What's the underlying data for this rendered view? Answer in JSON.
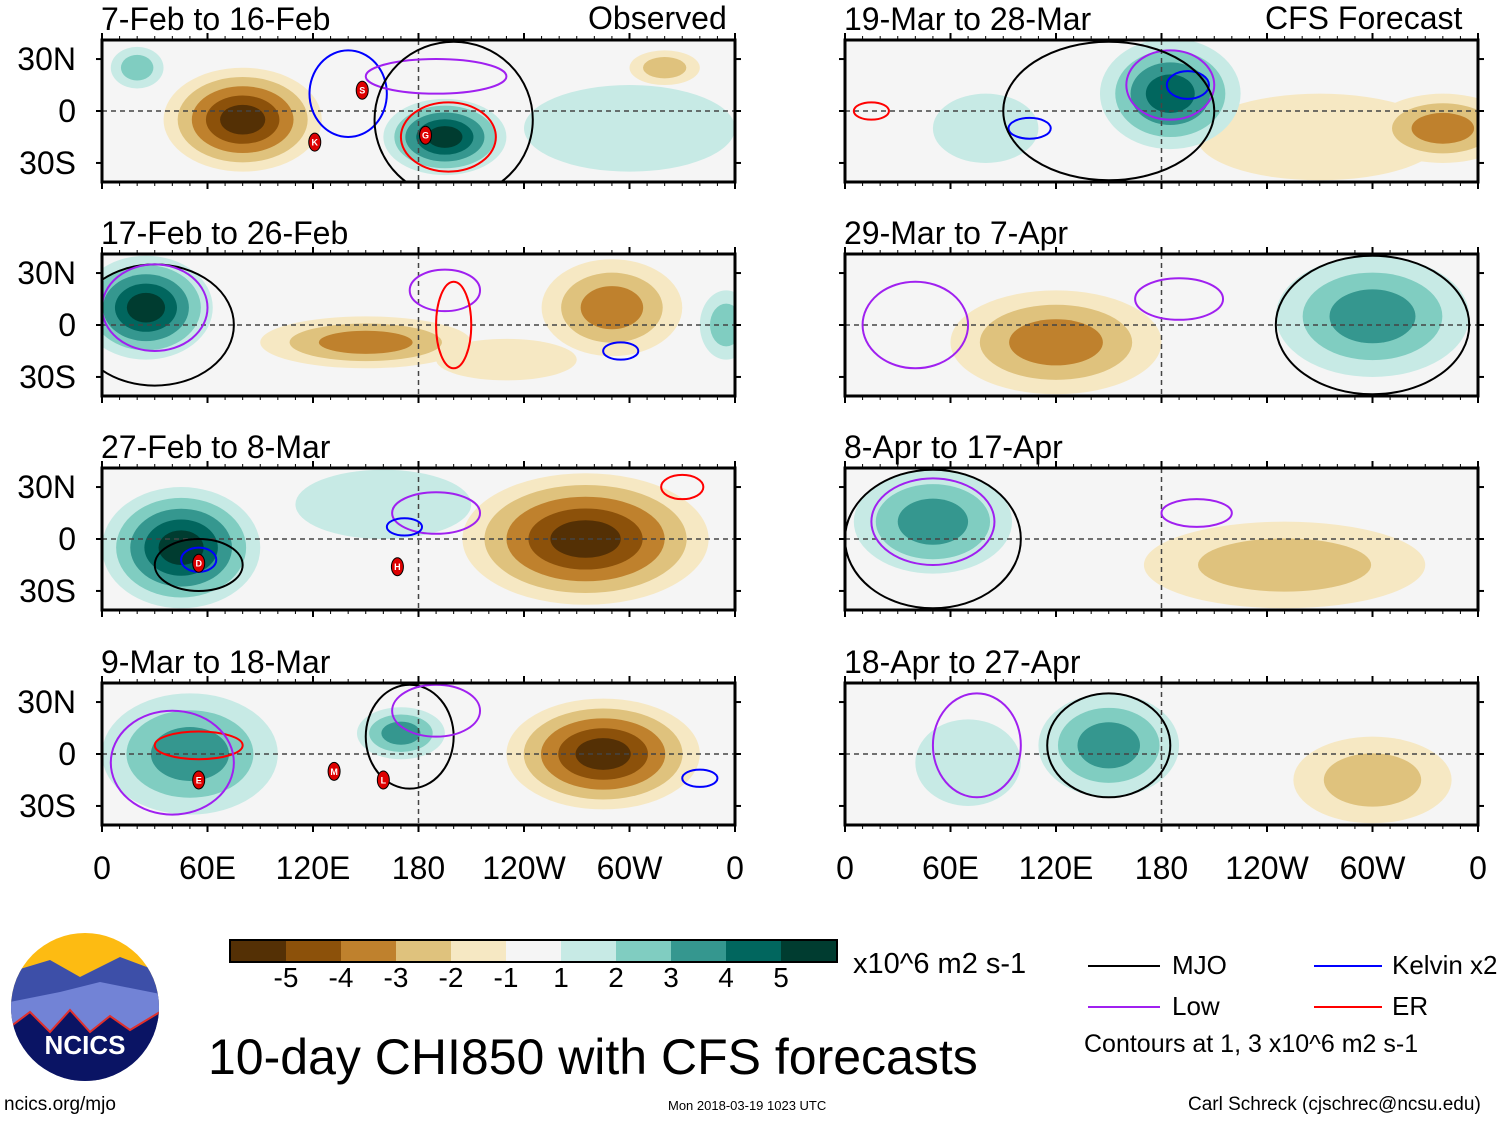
{
  "header": {
    "left_label": "Observed",
    "right_label": "CFS Forecast"
  },
  "lat_labels": [
    "30N",
    "0",
    "30S"
  ],
  "lon_labels": [
    "0",
    "60E",
    "120E",
    "180",
    "120W",
    "60W",
    "0"
  ],
  "colorbar": {
    "colors": [
      "#543005",
      "#8c510a",
      "#bf812d",
      "#dfc27d",
      "#f6e8c3",
      "#f5f5f5",
      "#c7eae5",
      "#80cdc1",
      "#35978f",
      "#01665e",
      "#003c30"
    ],
    "tick_labels": [
      "-5",
      "-4",
      "-3",
      "-2",
      "-1",
      "1",
      "2",
      "3",
      "4",
      "5"
    ],
    "units": "x10^6 m2 s-1"
  },
  "legend": {
    "items": [
      {
        "label": "MJO",
        "color": "#000000"
      },
      {
        "label": "Kelvin x2",
        "color": "#0000ff"
      },
      {
        "label": "Low",
        "color": "#a020f0"
      },
      {
        "label": "ER",
        "color": "#ff0000"
      }
    ],
    "note": "Contours at 1, 3 x10^6 m2 s-1"
  },
  "title": "10-day CHI850 with CFS forecasts",
  "logo_text": "NCICS",
  "footer": {
    "url": "ncics.org/mjo",
    "timestamp": "Mon 2018-03-19 1023 UTC",
    "author": "Carl Schreck (cjschrec@ncsu.edu)"
  },
  "chart_data": {
    "type": "heatmap",
    "panels": [
      {
        "title": "7-Feb to 16-Feb",
        "col": 0,
        "row": 0,
        "anomalies": [
          {
            "lon": 300,
            "lat": -10,
            "rlon": 60,
            "rlat": 25,
            "level": 1
          },
          {
            "lon": 320,
            "lat": 25,
            "rlon": 20,
            "rlat": 10,
            "level": -2
          },
          {
            "lon": 80,
            "lat": -5,
            "rlon": 45,
            "rlat": 30,
            "level": -5
          },
          {
            "lon": 195,
            "lat": -15,
            "rlon": 35,
            "rlat": 22,
            "level": 5
          },
          {
            "lon": 20,
            "lat": 25,
            "rlon": 15,
            "rlat": 12,
            "level": 2
          }
        ],
        "contours": [
          {
            "type": "Kelvin",
            "lon": 140,
            "lat": 10,
            "rlon": 22,
            "rlat": 25
          },
          {
            "type": "Low",
            "lon": 190,
            "lat": 20,
            "rlon": 40,
            "rlat": 10
          },
          {
            "type": "ER",
            "lon": 197,
            "lat": -15,
            "rlon": 27,
            "rlat": 20
          },
          {
            "type": "MJO",
            "lon": 200,
            "lat": -5,
            "rlon": 45,
            "rlat": 45
          }
        ],
        "storms": [
          {
            "id": "S",
            "lon": 148,
            "lat": 12
          },
          {
            "id": "K",
            "lon": 121,
            "lat": -18
          },
          {
            "id": "G",
            "lon": 184,
            "lat": -14
          }
        ]
      },
      {
        "title": "17-Feb to 26-Feb",
        "col": 0,
        "row": 1,
        "anomalies": [
          {
            "lon": 25,
            "lat": 10,
            "rlon": 38,
            "rlat": 30,
            "level": 5
          },
          {
            "lon": 150,
            "lat": -10,
            "rlon": 60,
            "rlat": 15,
            "level": -3
          },
          {
            "lon": 290,
            "lat": 10,
            "rlon": 40,
            "rlat": 28,
            "level": -3
          },
          {
            "lon": 355,
            "lat": 0,
            "rlon": 15,
            "rlat": 20,
            "level": 2
          },
          {
            "lon": 230,
            "lat": -20,
            "rlon": 40,
            "rlat": 12,
            "level": -1
          }
        ],
        "contours": [
          {
            "type": "Low",
            "lon": 195,
            "lat": 20,
            "rlon": 20,
            "rlat": 12
          },
          {
            "type": "ER",
            "lon": 200,
            "lat": 0,
            "rlon": 10,
            "rlat": 25
          },
          {
            "type": "Kelvin",
            "lon": 295,
            "lat": -15,
            "rlon": 10,
            "rlat": 5
          },
          {
            "type": "MJO",
            "lon": 30,
            "lat": 0,
            "rlon": 45,
            "rlat": 35
          },
          {
            "type": "Low",
            "lon": 30,
            "lat": 10,
            "rlon": 30,
            "rlat": 25
          }
        ],
        "storms": []
      },
      {
        "title": "27-Feb to 8-Mar",
        "col": 0,
        "row": 2,
        "anomalies": [
          {
            "lon": 160,
            "lat": 20,
            "rlon": 50,
            "rlat": 20,
            "level": 1
          },
          {
            "lon": 45,
            "lat": -5,
            "rlon": 45,
            "rlat": 35,
            "level": 5
          },
          {
            "lon": 275,
            "lat": 0,
            "rlon": 70,
            "rlat": 38,
            "level": -5
          }
        ],
        "contours": [
          {
            "type": "Low",
            "lon": 190,
            "lat": 15,
            "rlon": 25,
            "rlat": 12
          },
          {
            "type": "Kelvin",
            "lon": 172,
            "lat": 7,
            "rlon": 10,
            "rlat": 5
          },
          {
            "type": "ER",
            "lon": 330,
            "lat": 30,
            "rlon": 12,
            "rlat": 7
          },
          {
            "type": "MJO",
            "lon": 55,
            "lat": -15,
            "rlon": 25,
            "rlat": 15
          },
          {
            "type": "Kelvin",
            "lon": 55,
            "lat": -12,
            "rlon": 10,
            "rlat": 7
          }
        ],
        "storms": [
          {
            "id": "D",
            "lon": 55,
            "lat": -14
          },
          {
            "id": "H",
            "lon": 168,
            "lat": -16
          }
        ]
      },
      {
        "title": "9-Mar to 18-Mar",
        "col": 0,
        "row": 3,
        "anomalies": [
          {
            "lon": 50,
            "lat": 0,
            "rlon": 50,
            "rlat": 35,
            "level": 3
          },
          {
            "lon": 170,
            "lat": 12,
            "rlon": 25,
            "rlat": 15,
            "level": 3
          },
          {
            "lon": 285,
            "lat": 0,
            "rlon": 55,
            "rlat": 32,
            "level": -5
          }
        ],
        "contours": [
          {
            "type": "MJO",
            "lon": 175,
            "lat": 10,
            "rlon": 25,
            "rlat": 30
          },
          {
            "type": "Low",
            "lon": 190,
            "lat": 25,
            "rlon": 25,
            "rlat": 15
          },
          {
            "type": "ER",
            "lon": 55,
            "lat": 5,
            "rlon": 25,
            "rlat": 8
          },
          {
            "type": "Kelvin",
            "lon": 340,
            "lat": -14,
            "rlon": 10,
            "rlat": 5
          },
          {
            "type": "Low",
            "lon": 40,
            "lat": -5,
            "rlon": 35,
            "rlat": 30
          }
        ],
        "storms": [
          {
            "id": "E",
            "lon": 55,
            "lat": -15
          },
          {
            "id": "M",
            "lon": 132,
            "lat": -10
          },
          {
            "id": "L",
            "lon": 160,
            "lat": -15
          }
        ]
      },
      {
        "title": "19-Mar to 28-Mar",
        "col": 1,
        "row": 0,
        "anomalies": [
          {
            "lon": 270,
            "lat": -15,
            "rlon": 70,
            "rlat": 25,
            "level": -1
          },
          {
            "lon": 185,
            "lat": 10,
            "rlon": 40,
            "rlat": 32,
            "level": 4
          },
          {
            "lon": 340,
            "lat": -10,
            "rlon": 40,
            "rlat": 20,
            "level": -3
          },
          {
            "lon": 80,
            "lat": -10,
            "rlon": 30,
            "rlat": 20,
            "level": 1
          }
        ],
        "contours": [
          {
            "type": "Kelvin",
            "lon": 195,
            "lat": 15,
            "rlon": 12,
            "rlat": 8
          },
          {
            "type": "Low",
            "lon": 185,
            "lat": 15,
            "rlon": 25,
            "rlat": 20
          },
          {
            "type": "Kelvin",
            "lon": 105,
            "lat": -10,
            "rlon": 12,
            "rlat": 6
          },
          {
            "type": "ER",
            "lon": 15,
            "lat": 0,
            "rlon": 10,
            "rlat": 5
          },
          {
            "type": "MJO",
            "lon": 150,
            "lat": 0,
            "rlon": 60,
            "rlat": 40
          }
        ],
        "storms": []
      },
      {
        "title": "29-Mar to 7-Apr",
        "col": 1,
        "row": 1,
        "anomalies": [
          {
            "lon": 120,
            "lat": -10,
            "rlon": 60,
            "rlat": 30,
            "level": -3
          },
          {
            "lon": 300,
            "lat": 5,
            "rlon": 55,
            "rlat": 35,
            "level": 3
          }
        ],
        "contours": [
          {
            "type": "Low",
            "lon": 190,
            "lat": 15,
            "rlon": 25,
            "rlat": 12
          },
          {
            "type": "MJO",
            "lon": 300,
            "lat": 0,
            "rlon": 55,
            "rlat": 40
          },
          {
            "type": "Low",
            "lon": 40,
            "lat": 0,
            "rlon": 30,
            "rlat": 25
          }
        ],
        "storms": []
      },
      {
        "title": "8-Apr to 17-Apr",
        "col": 1,
        "row": 2,
        "anomalies": [
          {
            "lon": 50,
            "lat": 10,
            "rlon": 45,
            "rlat": 30,
            "level": 3
          },
          {
            "lon": 250,
            "lat": -15,
            "rlon": 80,
            "rlat": 25,
            "level": -2
          }
        ],
        "contours": [
          {
            "type": "Low",
            "lon": 200,
            "lat": 15,
            "rlon": 20,
            "rlat": 8
          },
          {
            "type": "MJO",
            "lon": 50,
            "lat": 0,
            "rlon": 50,
            "rlat": 40
          },
          {
            "type": "Low",
            "lon": 50,
            "lat": 10,
            "rlon": 35,
            "rlat": 25
          }
        ],
        "storms": []
      },
      {
        "title": "18-Apr to 27-Apr",
        "col": 1,
        "row": 3,
        "anomalies": [
          {
            "lon": 70,
            "lat": -5,
            "rlon": 30,
            "rlat": 25,
            "level": 1
          },
          {
            "lon": 150,
            "lat": 5,
            "rlon": 40,
            "rlat": 30,
            "level": 3
          },
          {
            "lon": 300,
            "lat": -15,
            "rlon": 45,
            "rlat": 25,
            "level": -2
          }
        ],
        "contours": [
          {
            "type": "MJO",
            "lon": 150,
            "lat": 5,
            "rlon": 35,
            "rlat": 30
          },
          {
            "type": "Low",
            "lon": 75,
            "lat": 5,
            "rlon": 25,
            "rlat": 30
          }
        ],
        "storms": []
      }
    ]
  }
}
